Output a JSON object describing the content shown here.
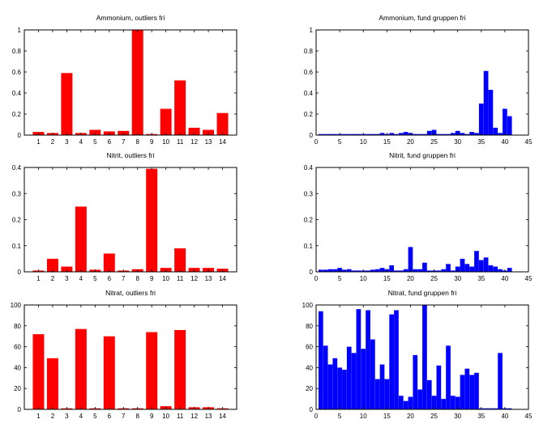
{
  "chart_data": [
    {
      "type": "bar",
      "title": "Ammonium, outliers fri",
      "color": "#ff0000",
      "x": [
        1,
        2,
        3,
        4,
        5,
        6,
        7,
        8,
        9,
        10,
        11,
        12,
        13,
        14
      ],
      "values": [
        0.03,
        0.02,
        0.59,
        0.02,
        0.05,
        0.035,
        0.04,
        1.0,
        0.01,
        0.25,
        0.52,
        0.07,
        0.05,
        0.21
      ],
      "xlim": [
        0,
        15
      ],
      "ylim": [
        0,
        1
      ],
      "xticks": [
        1,
        2,
        3,
        4,
        5,
        6,
        7,
        8,
        9,
        10,
        11,
        12,
        13,
        14
      ],
      "yticks": [
        0,
        0.2,
        0.4,
        0.6,
        0.8,
        1
      ],
      "ytick_labels": [
        "0",
        "0.2",
        "0.4",
        "0.6",
        "0.8",
        "1"
      ]
    },
    {
      "type": "bar",
      "title": "Ammonium, fund gruppen fri",
      "color": "#0000ff",
      "x": [
        1,
        2,
        3,
        4,
        5,
        6,
        7,
        8,
        9,
        10,
        11,
        12,
        13,
        14,
        15,
        16,
        17,
        18,
        19,
        20,
        21,
        22,
        23,
        24,
        25,
        26,
        27,
        28,
        29,
        30,
        31,
        32,
        33,
        34,
        35,
        36,
        37,
        38,
        39,
        40,
        41
      ],
      "values": [
        0.01,
        0.01,
        0.01,
        0.01,
        0.01,
        0.01,
        0.01,
        0.01,
        0.01,
        0.01,
        0.01,
        0.01,
        0.01,
        0.02,
        0.01,
        0.02,
        0.01,
        0.02,
        0.03,
        0.02,
        0.01,
        0.01,
        0.01,
        0.04,
        0.05,
        0.01,
        0.01,
        0.01,
        0.02,
        0.04,
        0.02,
        0.01,
        0.03,
        0.02,
        0.3,
        0.61,
        0.43,
        0.07,
        0.02,
        0.25,
        0.18
      ],
      "xlim": [
        0,
        45
      ],
      "ylim": [
        0,
        1
      ],
      "xticks": [
        0,
        5,
        10,
        15,
        20,
        25,
        30,
        35,
        40,
        45
      ],
      "yticks": [
        0,
        0.2,
        0.4,
        0.6,
        0.8,
        1
      ],
      "ytick_labels": [
        "0",
        "0.2",
        "0.4",
        "0.6",
        "0.8",
        "1"
      ]
    },
    {
      "type": "bar",
      "title": "Nitrit, outliers fri",
      "color": "#ff0000",
      "x": [
        1,
        2,
        3,
        4,
        5,
        6,
        7,
        8,
        9,
        10,
        11,
        12,
        13,
        14
      ],
      "values": [
        0.005,
        0.05,
        0.02,
        0.25,
        0.008,
        0.07,
        0.005,
        0.01,
        0.395,
        0.015,
        0.09,
        0.015,
        0.015,
        0.012
      ],
      "xlim": [
        0,
        15
      ],
      "ylim": [
        0,
        0.4
      ],
      "xticks": [
        1,
        2,
        3,
        4,
        5,
        6,
        7,
        8,
        9,
        10,
        11,
        12,
        13,
        14
      ],
      "yticks": [
        0,
        0.1,
        0.2,
        0.3,
        0.4
      ],
      "ytick_labels": [
        "0",
        "0.1",
        "0.2",
        "0.3",
        "0.4"
      ]
    },
    {
      "type": "bar",
      "title": "Nitrit, fund gruppen fri",
      "color": "#0000ff",
      "x": [
        1,
        2,
        3,
        4,
        5,
        6,
        7,
        8,
        9,
        10,
        11,
        12,
        13,
        14,
        15,
        16,
        17,
        18,
        19,
        20,
        21,
        22,
        23,
        24,
        25,
        26,
        27,
        28,
        29,
        30,
        31,
        32,
        33,
        34,
        35,
        36,
        37,
        38,
        39,
        40,
        41
      ],
      "values": [
        0.008,
        0.008,
        0.01,
        0.01,
        0.015,
        0.008,
        0.01,
        0.005,
        0.005,
        0.005,
        0.005,
        0.008,
        0.01,
        0.015,
        0.01,
        0.025,
        0.005,
        0.005,
        0.01,
        0.095,
        0.01,
        0.01,
        0.035,
        0.005,
        0.005,
        0.005,
        0.01,
        0.03,
        0.005,
        0.02,
        0.05,
        0.03,
        0.02,
        0.08,
        0.045,
        0.055,
        0.025,
        0.02,
        0.01,
        0.005,
        0.015
      ],
      "xlim": [
        0,
        45
      ],
      "ylim": [
        0,
        0.4
      ],
      "xticks": [
        0,
        5,
        10,
        15,
        20,
        25,
        30,
        35,
        40,
        45
      ],
      "yticks": [
        0,
        0.1,
        0.2,
        0.3,
        0.4
      ],
      "ytick_labels": [
        "0",
        "0.1",
        "0.2",
        "0.3",
        "0.4"
      ]
    },
    {
      "type": "bar",
      "title": "Nitrat, outliers fri",
      "color": "#ff0000",
      "x": [
        1,
        2,
        3,
        4,
        5,
        6,
        7,
        8,
        9,
        10,
        11,
        12,
        13,
        14
      ],
      "values": [
        72,
        49,
        1,
        77,
        1,
        70,
        1,
        1,
        74,
        3,
        76,
        2,
        2,
        1
      ],
      "xlim": [
        0,
        15
      ],
      "ylim": [
        0,
        100
      ],
      "xticks": [
        1,
        2,
        3,
        4,
        5,
        6,
        7,
        8,
        9,
        10,
        11,
        12,
        13,
        14
      ],
      "yticks": [
        0,
        20,
        40,
        60,
        80,
        100
      ],
      "ytick_labels": [
        "0",
        "20",
        "40",
        "60",
        "80",
        "100"
      ]
    },
    {
      "type": "bar",
      "title": "Nitrat, fund gruppen fri",
      "color": "#0000ff",
      "x": [
        1,
        2,
        3,
        4,
        5,
        6,
        7,
        8,
        9,
        10,
        11,
        12,
        13,
        14,
        15,
        16,
        17,
        18,
        19,
        20,
        21,
        22,
        23,
        24,
        25,
        26,
        27,
        28,
        29,
        30,
        31,
        32,
        33,
        34,
        35,
        36,
        37,
        38,
        39,
        40,
        41
      ],
      "values": [
        94,
        61,
        43,
        49,
        40,
        38,
        60,
        54,
        96,
        58,
        95,
        67,
        29,
        43,
        29,
        91,
        95,
        13,
        8,
        12,
        52,
        19,
        100,
        28,
        13,
        42,
        10,
        61,
        13,
        12,
        33,
        39,
        33,
        35,
        1,
        1,
        1,
        1,
        54,
        1,
        1
      ],
      "xlim": [
        0,
        45
      ],
      "ylim": [
        0,
        100
      ],
      "xticks": [
        0,
        5,
        10,
        15,
        20,
        25,
        30,
        35,
        40,
        45
      ],
      "yticks": [
        0,
        20,
        40,
        60,
        80,
        100
      ],
      "ytick_labels": [
        "0",
        "20",
        "40",
        "60",
        "80",
        "100"
      ]
    }
  ]
}
